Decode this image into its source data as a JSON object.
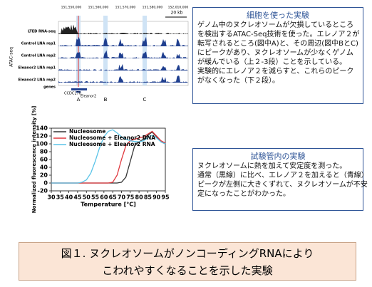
{
  "figure": {
    "genome": {
      "coordinates": [
        "151,550,000",
        "151,560,000",
        "151,570,000",
        "151,580,000",
        "152,010,000"
      ],
      "scale": "20 kb",
      "axis_label": "ATAC-seq",
      "tracks": [
        "LTED RNA-seq",
        "Control LNA rep1",
        "Control LNA rep2",
        "Eleanor2 LNA rep1",
        "Eleanor2 LNA rep2",
        "genes"
      ],
      "genes": [
        "CCDC170",
        "Eleanor2"
      ],
      "markers": [
        "A",
        "B",
        "C"
      ]
    },
    "box1": {
      "title": "細胞を使った実験",
      "lines": [
        "ゲノム中のヌクレオソームが欠損しているところ",
        "を検出するATAC-Seq技術を使った。エレノア２が",
        "転写されるところ(図中A)と、その周辺(図中BとC)",
        "にピークがあり、ヌクレオソームが少なくゲノム",
        "が緩んでいる（上２-3段）ことを示している。",
        "実験的にエレノア２を減らすと、これらのピーク",
        "がなくなった（下２段）。"
      ]
    },
    "box2": {
      "title": "試験管内の実験",
      "lines": [
        "ヌクレオソームに熱を加えて安定度を測った。",
        "通常（黒線）に比べ、エレノア２を加えると（青線）",
        "ピークが左側に大きくずれて、ヌクレオソームが不安",
        "定になったことがわかった。"
      ]
    },
    "caption": {
      "lines": [
        "図１. ヌクレオソームがノンコーディングRNAにより",
        "こわれやすくなることを示した実験"
      ]
    }
  },
  "chart_data": {
    "type": "line",
    "x_label": "Temperature [°C]",
    "y_label": "Normalized fluorescence intensity [%]",
    "x": [
      30,
      32.5,
      35,
      37.5,
      40,
      42.5,
      45,
      47.5,
      50,
      52.5,
      55,
      57.5,
      60,
      62.5,
      65,
      67.5,
      70,
      72.5,
      75,
      77.5,
      80,
      82.5,
      85,
      87.5,
      90,
      92.5,
      95
    ],
    "series": [
      {
        "name": "Nucleosome",
        "color": "#333333",
        "values": [
          0,
          0,
          0,
          0,
          0,
          0,
          0,
          0,
          0,
          0,
          0,
          0,
          0,
          0,
          0,
          0,
          2,
          15,
          55,
          95,
          105,
          112,
          122,
          130,
          118,
          105,
          100
        ]
      },
      {
        "name": "Nucleosome + Eleanor2 DNA",
        "color": "#e0383e",
        "values": [
          0,
          0,
          0,
          0,
          0,
          0,
          0,
          0,
          0,
          0,
          0,
          0,
          0,
          0,
          2,
          20,
          60,
          95,
          108,
          112,
          115,
          118,
          125,
          132,
          120,
          108,
          102
        ]
      },
      {
        "name": "Nucleosome + Eleanor2 RNA",
        "color": "#5bc4e8",
        "values": [
          0,
          0,
          0,
          0,
          0,
          0,
          0,
          2,
          8,
          25,
          55,
          90,
          118,
          132,
          136,
          128,
          118,
          112,
          108,
          106,
          105,
          108,
          115,
          122,
          115,
          105,
          100
        ]
      }
    ],
    "xlim": [
      30,
      95
    ],
    "xticks": [
      30,
      35,
      40,
      45,
      50,
      55,
      60,
      65,
      70,
      75,
      80,
      85,
      90,
      95
    ],
    "ylim": [
      -20,
      140
    ],
    "yticks": [
      -20,
      0,
      20,
      40,
      60,
      80,
      100,
      120,
      140
    ],
    "legend": "upper-left"
  }
}
